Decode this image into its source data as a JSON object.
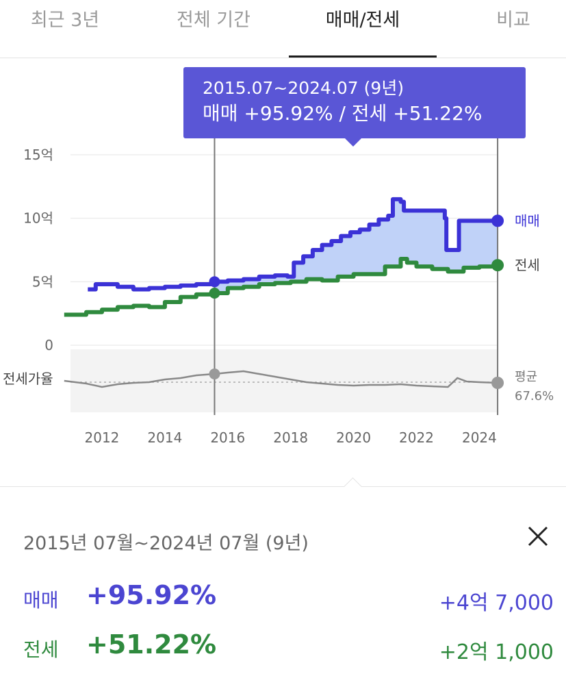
{
  "tabs": [
    {
      "label": "최근 3년",
      "active": false
    },
    {
      "label": "전체 기간",
      "active": false
    },
    {
      "label": "매매/전세",
      "active": true
    },
    {
      "label": "비교",
      "active": false
    }
  ],
  "tooltip": {
    "range": "2015.07~2024.07 (9년)",
    "values": "매매 +95.92%  /  전세 +51.22%"
  },
  "chart_data": {
    "type": "line",
    "y_ticks": [
      "15억",
      "10억",
      "5억",
      "0"
    ],
    "x_ticks": [
      "2012",
      "2014",
      "2016",
      "2018",
      "2020",
      "2022",
      "2024"
    ],
    "ylim": [
      0,
      15
    ],
    "series": [
      {
        "name": "매매",
        "color": "#3b32d6",
        "x": [
          2011.55,
          2011.8,
          2012.5,
          2013,
          2013.5,
          2014,
          2014.5,
          2015,
          2015.58,
          2016,
          2016.5,
          2017,
          2017.5,
          2017.9,
          2018.1,
          2018.4,
          2018.7,
          2019,
          2019.3,
          2019.6,
          2019.9,
          2020.2,
          2020.5,
          2020.8,
          2021.1,
          2021.25,
          2021.5,
          2021.6,
          2022,
          2022.5,
          2022.9,
          2022.95,
          2023.3,
          2023.35,
          2023.6,
          2024,
          2024.58
        ],
        "values": [
          4.4,
          4.8,
          4.6,
          4.4,
          4.5,
          4.6,
          4.7,
          4.8,
          5.0,
          5.1,
          5.2,
          5.4,
          5.5,
          5.4,
          6.5,
          7.0,
          7.5,
          7.9,
          8.2,
          8.6,
          8.9,
          9.1,
          9.5,
          9.9,
          10.2,
          11.5,
          11.3,
          10.6,
          10.6,
          10.6,
          10.0,
          7.5,
          7.5,
          9.8,
          9.8,
          9.8,
          9.8
        ]
      },
      {
        "name": "전세",
        "color": "#2f8a3e",
        "x": [
          2010.8,
          2011.5,
          2012,
          2012.5,
          2013,
          2013.5,
          2014,
          2014.5,
          2015,
          2015.58,
          2016,
          2016.5,
          2017,
          2017.5,
          2018,
          2018.5,
          2019,
          2019.5,
          2020,
          2020.5,
          2021,
          2021.5,
          2021.7,
          2022,
          2022.5,
          2023,
          2023.5,
          2024,
          2024.58
        ],
        "values": [
          2.4,
          2.6,
          2.8,
          3.0,
          3.1,
          3.0,
          3.4,
          3.8,
          4.0,
          4.1,
          4.5,
          4.6,
          4.8,
          4.9,
          5.0,
          5.2,
          5.1,
          5.4,
          5.6,
          5.6,
          6.2,
          6.8,
          6.5,
          6.2,
          6.0,
          5.8,
          6.1,
          6.2,
          6.3
        ]
      },
      {
        "name": "전세가율",
        "color": "#888888",
        "x": [
          2010.8,
          2011.5,
          2012,
          2012.5,
          2013,
          2013.5,
          2014,
          2014.5,
          2015,
          2015.58,
          2016,
          2016.5,
          2017,
          2017.5,
          2018,
          2018.5,
          2019,
          2019.5,
          2020,
          2020.5,
          2021,
          2021.5,
          2022,
          2022.5,
          2023,
          2023.3,
          2023.6,
          2024,
          2024.58
        ],
        "values": [
          -2.8,
          -3.2,
          -3.7,
          -3.3,
          -3.1,
          -3.0,
          -2.6,
          -2.4,
          -2.0,
          -1.8,
          -1.6,
          -1.4,
          -1.8,
          -2.2,
          -2.6,
          -3.0,
          -3.2,
          -3.4,
          -3.5,
          -3.4,
          -3.4,
          -3.3,
          -3.5,
          -3.6,
          -3.7,
          -2.4,
          -2.9,
          -3.0,
          -3.1
        ]
      }
    ],
    "end_labels": [
      "매매",
      "전세"
    ],
    "ratio_label": "전세가율",
    "avg_label": "평균",
    "avg_value": "67.6%",
    "selection": {
      "start": 2015.58,
      "end": 2024.58
    },
    "legend": "right"
  },
  "panel": {
    "period": "2015년 07월~2024년 07월 (9년)",
    "rows": [
      {
        "label": "매매",
        "pct": "+95.92%",
        "amount": "+4억 7,000"
      },
      {
        "label": "전세",
        "pct": "+51.22%",
        "amount": "+2억 1,000"
      }
    ]
  }
}
